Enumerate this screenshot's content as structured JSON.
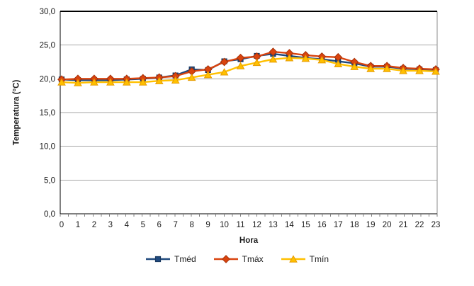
{
  "chart_data": {
    "type": "line",
    "title": "",
    "xlabel": "Hora",
    "ylabel": "Temperatura (°C)",
    "categories": [
      "0",
      "1",
      "2",
      "3",
      "4",
      "5",
      "6",
      "7",
      "8",
      "9",
      "10",
      "11",
      "12",
      "13",
      "14",
      "15",
      "16",
      "17",
      "18",
      "19",
      "20",
      "21",
      "22",
      "23"
    ],
    "y_tick_labels": [
      "0,0",
      "5,0",
      "10,0",
      "15,0",
      "20,0",
      "25,0",
      "30,0"
    ],
    "ylim": [
      0,
      30
    ],
    "y_step": 5,
    "grid": "horizontal",
    "legend_position": "bottom",
    "series": [
      {
        "name": "Tméd",
        "marker": "square",
        "color": "#1F497D",
        "edge": "#17375E",
        "values": [
          19.9,
          19.8,
          19.8,
          19.8,
          19.9,
          20.0,
          20.2,
          20.5,
          21.4,
          21.3,
          22.6,
          22.9,
          23.4,
          23.7,
          23.4,
          23.1,
          22.9,
          22.6,
          22.3,
          21.8,
          21.8,
          21.5,
          21.4,
          21.3
        ]
      },
      {
        "name": "Tmáx",
        "marker": "diamond",
        "color": "#D9440F",
        "edge": "#A83209",
        "values": [
          19.9,
          20.0,
          20.0,
          20.0,
          20.0,
          20.1,
          20.2,
          20.4,
          21.1,
          21.4,
          22.5,
          23.1,
          23.3,
          24.0,
          23.8,
          23.5,
          23.3,
          23.2,
          22.5,
          21.9,
          21.9,
          21.6,
          21.5,
          21.4
        ]
      },
      {
        "name": "Tmín",
        "marker": "triangle",
        "color": "#FFC000",
        "edge": "#E69A00",
        "values": [
          19.5,
          19.4,
          19.5,
          19.5,
          19.5,
          19.5,
          19.7,
          19.8,
          20.2,
          20.6,
          21.0,
          21.9,
          22.4,
          22.9,
          23.1,
          23.0,
          22.8,
          22.2,
          21.8,
          21.5,
          21.5,
          21.2,
          21.2,
          21.1
        ]
      }
    ],
    "colors": {
      "axis": "#000000",
      "top_border": "#000000",
      "right_border": "#8C8C8C",
      "grid": "#A6A6A6",
      "tick": "#7F7F7F",
      "text": "#1A1A1A",
      "background": "#FFFFFF"
    }
  }
}
